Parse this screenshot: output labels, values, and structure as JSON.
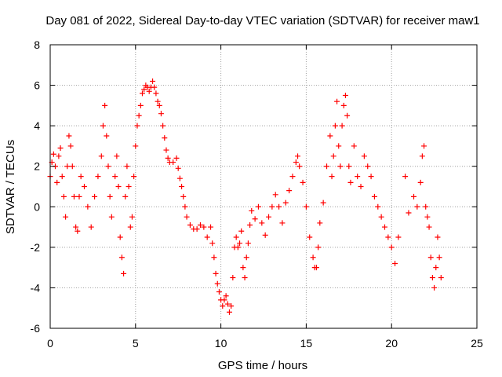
{
  "chart_data": {
    "type": "scatter",
    "title": "Day 081 of 2022, Sidereal Day-to-day VTEC variation (SDTVAR) for receiver maw1",
    "xlabel": "GPS time / hours",
    "ylabel": "SDTVAR / TECUs",
    "xlim": [
      0,
      25
    ],
    "ylim": [
      -6,
      8
    ],
    "xticks": [
      0,
      5,
      10,
      15,
      20,
      25
    ],
    "yticks": [
      -6,
      -4,
      -2,
      0,
      2,
      4,
      6,
      8
    ],
    "xtick_labels": [
      "0",
      "5",
      "10",
      "15",
      "20",
      "25"
    ],
    "ytick_labels": [
      "-6",
      "-4",
      "-2",
      "0",
      "2",
      "4",
      "6",
      "8"
    ],
    "grid": true,
    "marker": "+",
    "marker_color": "#ff0000",
    "series": [
      {
        "name": "maw1",
        "points": [
          [
            0.0,
            1.5
          ],
          [
            0.1,
            2.2
          ],
          [
            0.2,
            2.6
          ],
          [
            0.3,
            2.0
          ],
          [
            0.4,
            1.2
          ],
          [
            0.5,
            2.5
          ],
          [
            0.6,
            2.9
          ],
          [
            0.7,
            1.5
          ],
          [
            0.8,
            0.5
          ],
          [
            0.9,
            -0.5
          ],
          [
            1.0,
            2.0
          ],
          [
            1.1,
            3.5
          ],
          [
            1.2,
            3.0
          ],
          [
            1.3,
            2.0
          ],
          [
            1.4,
            0.5
          ],
          [
            1.5,
            -1.0
          ],
          [
            1.6,
            -1.2
          ],
          [
            1.7,
            0.5
          ],
          [
            1.8,
            1.5
          ],
          [
            2.0,
            1.0
          ],
          [
            2.2,
            0.0
          ],
          [
            2.4,
            -1.0
          ],
          [
            2.6,
            0.5
          ],
          [
            2.8,
            1.5
          ],
          [
            3.0,
            2.5
          ],
          [
            3.1,
            4.0
          ],
          [
            3.2,
            5.0
          ],
          [
            3.3,
            3.5
          ],
          [
            3.4,
            2.0
          ],
          [
            3.5,
            0.5
          ],
          [
            3.6,
            -0.5
          ],
          [
            3.8,
            1.5
          ],
          [
            3.9,
            2.5
          ],
          [
            4.0,
            1.0
          ],
          [
            4.1,
            -1.5
          ],
          [
            4.2,
            -2.5
          ],
          [
            4.3,
            -3.3
          ],
          [
            4.4,
            0.5
          ],
          [
            4.5,
            2.0
          ],
          [
            4.6,
            1.0
          ],
          [
            4.7,
            -1.0
          ],
          [
            4.8,
            -0.5
          ],
          [
            4.9,
            1.5
          ],
          [
            5.0,
            3.0
          ],
          [
            5.1,
            4.0
          ],
          [
            5.2,
            4.5
          ],
          [
            5.3,
            5.0
          ],
          [
            5.4,
            5.6
          ],
          [
            5.5,
            5.8
          ],
          [
            5.6,
            6.0
          ],
          [
            5.7,
            5.9
          ],
          [
            5.8,
            5.7
          ],
          [
            5.9,
            5.9
          ],
          [
            6.0,
            6.2
          ],
          [
            6.1,
            5.9
          ],
          [
            6.2,
            5.6
          ],
          [
            6.3,
            5.2
          ],
          [
            6.4,
            5.0
          ],
          [
            6.5,
            4.6
          ],
          [
            6.6,
            4.0
          ],
          [
            6.7,
            3.4
          ],
          [
            6.8,
            2.8
          ],
          [
            6.9,
            2.4
          ],
          [
            7.0,
            2.2
          ],
          [
            7.2,
            2.2
          ],
          [
            7.4,
            2.4
          ],
          [
            7.5,
            1.9
          ],
          [
            7.6,
            1.4
          ],
          [
            7.7,
            1.0
          ],
          [
            7.8,
            0.5
          ],
          [
            7.9,
            0.0
          ],
          [
            8.0,
            -0.5
          ],
          [
            8.2,
            -0.9
          ],
          [
            8.4,
            -1.1
          ],
          [
            8.6,
            -1.1
          ],
          [
            8.8,
            -0.9
          ],
          [
            9.0,
            -1.0
          ],
          [
            9.2,
            -1.5
          ],
          [
            9.4,
            -1.0
          ],
          [
            9.5,
            -1.8
          ],
          [
            9.6,
            -2.5
          ],
          [
            9.7,
            -3.3
          ],
          [
            9.8,
            -3.8
          ],
          [
            9.9,
            -4.2
          ],
          [
            10.0,
            -4.6
          ],
          [
            10.1,
            -4.9
          ],
          [
            10.2,
            -4.6
          ],
          [
            10.3,
            -4.4
          ],
          [
            10.4,
            -4.8
          ],
          [
            10.5,
            -5.2
          ],
          [
            10.6,
            -4.9
          ],
          [
            10.7,
            -3.5
          ],
          [
            10.8,
            -2.0
          ],
          [
            10.9,
            -1.5
          ],
          [
            11.0,
            -2.0
          ],
          [
            11.1,
            -1.8
          ],
          [
            11.2,
            -1.2
          ],
          [
            11.3,
            -3.0
          ],
          [
            11.4,
            -3.5
          ],
          [
            11.5,
            -2.5
          ],
          [
            11.6,
            -1.8
          ],
          [
            11.7,
            -0.9
          ],
          [
            11.8,
            -0.2
          ],
          [
            12.0,
            -0.6
          ],
          [
            12.2,
            0.0
          ],
          [
            12.4,
            -0.8
          ],
          [
            12.6,
            -1.4
          ],
          [
            12.8,
            -0.5
          ],
          [
            13.0,
            0.0
          ],
          [
            13.2,
            0.6
          ],
          [
            13.4,
            0.0
          ],
          [
            13.6,
            -0.8
          ],
          [
            13.8,
            0.2
          ],
          [
            14.0,
            0.8
          ],
          [
            14.2,
            1.5
          ],
          [
            14.4,
            2.2
          ],
          [
            14.5,
            2.5
          ],
          [
            14.6,
            2.0
          ],
          [
            14.8,
            1.2
          ],
          [
            15.0,
            0.0
          ],
          [
            15.2,
            -1.5
          ],
          [
            15.4,
            -2.5
          ],
          [
            15.5,
            -3.0
          ],
          [
            15.6,
            -3.0
          ],
          [
            15.7,
            -2.0
          ],
          [
            15.8,
            -0.8
          ],
          [
            16.0,
            0.2
          ],
          [
            16.2,
            2.0
          ],
          [
            16.4,
            3.5
          ],
          [
            16.5,
            1.5
          ],
          [
            16.6,
            2.5
          ],
          [
            16.7,
            4.0
          ],
          [
            16.8,
            5.2
          ],
          [
            16.9,
            3.0
          ],
          [
            17.0,
            2.0
          ],
          [
            17.1,
            4.0
          ],
          [
            17.2,
            5.0
          ],
          [
            17.3,
            5.5
          ],
          [
            17.4,
            4.5
          ],
          [
            17.5,
            2.0
          ],
          [
            17.6,
            1.2
          ],
          [
            17.8,
            3.0
          ],
          [
            18.0,
            1.5
          ],
          [
            18.2,
            1.0
          ],
          [
            18.4,
            2.5
          ],
          [
            18.6,
            2.0
          ],
          [
            18.8,
            1.5
          ],
          [
            19.0,
            0.5
          ],
          [
            19.2,
            0.0
          ],
          [
            19.4,
            -0.5
          ],
          [
            19.6,
            -1.0
          ],
          [
            19.8,
            -1.5
          ],
          [
            20.0,
            -2.0
          ],
          [
            20.2,
            -2.8
          ],
          [
            20.4,
            -1.5
          ],
          [
            20.8,
            1.5
          ],
          [
            21.0,
            -0.3
          ],
          [
            21.3,
            0.5
          ],
          [
            21.5,
            0.0
          ],
          [
            21.7,
            1.2
          ],
          [
            21.8,
            2.5
          ],
          [
            21.9,
            3.0
          ],
          [
            22.0,
            0.0
          ],
          [
            22.1,
            -0.5
          ],
          [
            22.2,
            -1.0
          ],
          [
            22.3,
            -2.5
          ],
          [
            22.4,
            -3.5
          ],
          [
            22.5,
            -4.0
          ],
          [
            22.6,
            -3.0
          ],
          [
            22.7,
            -1.5
          ],
          [
            22.8,
            -2.5
          ],
          [
            22.9,
            -3.5
          ]
        ]
      }
    ]
  }
}
